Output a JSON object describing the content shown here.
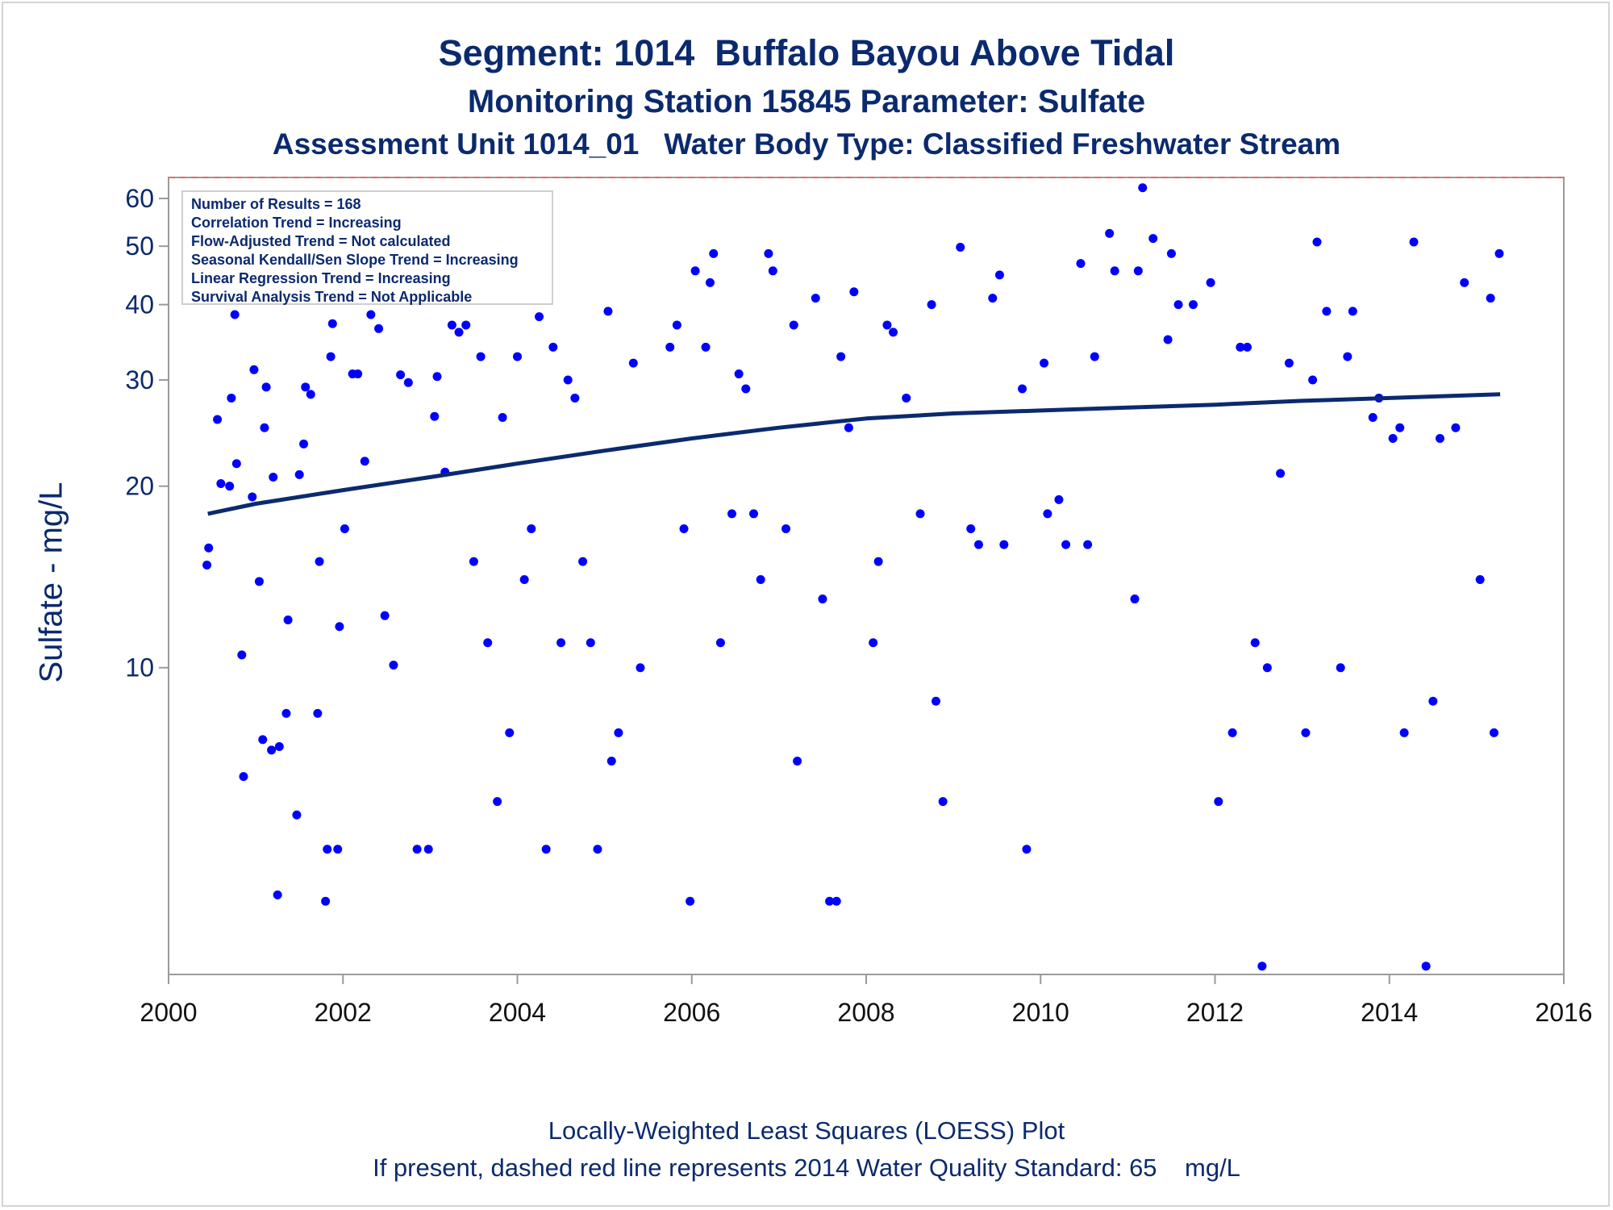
{
  "title": "Segment: 1014  Buffalo Bayou Above Tidal",
  "subtitle": "Monitoring Station 15845 Parameter: Sulfate",
  "subtitle2": "Assessment Unit 1014_01   Water Body Type: Classified Freshwater Stream",
  "footer1": "Locally-Weighted Least Squares (LOESS) Plot",
  "footer2": "If present, dashed red line represents 2014 Water Quality Standard: 65    mg/L",
  "stats": [
    "Number of Results = 168",
    "Correlation Trend = Increasing",
    "Flow-Adjusted Trend = Not calculated",
    "Seasonal Kendall/Sen Slope Trend = Increasing",
    "Linear Regression Trend = Increasing",
    "Survival Analysis Trend = Not Applicable"
  ],
  "colors": {
    "text": "#0b2a6e",
    "points": "#0000ff",
    "loess": "#0b2a6e",
    "standard": "#e06a6a",
    "axis": "#9a9a9a"
  },
  "chart_data": {
    "type": "scatter",
    "ylabel": "Sulfate - mg/L",
    "xlim": [
      2000,
      2016
    ],
    "ylim": [
      3.1,
      65
    ],
    "y_scale": "log",
    "x_ticks": [
      "2000",
      "2002",
      "2004",
      "2006",
      "2008",
      "2010",
      "2012",
      "2014",
      "2016"
    ],
    "y_ticks": [
      "10",
      "20",
      "30",
      "40",
      "50",
      "60"
    ],
    "standard": 65,
    "points": [
      [
        2000.44,
        14.8
      ],
      [
        2000.46,
        15.8
      ],
      [
        2000.56,
        25.8
      ],
      [
        2000.6,
        20.2
      ],
      [
        2000.7,
        20.0
      ],
      [
        2000.72,
        28.0
      ],
      [
        2000.76,
        38.5
      ],
      [
        2000.78,
        21.8
      ],
      [
        2000.84,
        10.5
      ],
      [
        2000.86,
        6.6
      ],
      [
        2000.96,
        19.2
      ],
      [
        2000.98,
        31.2
      ],
      [
        2001.04,
        13.9
      ],
      [
        2001.08,
        7.6
      ],
      [
        2001.1,
        25.0
      ],
      [
        2001.12,
        29.2
      ],
      [
        2001.18,
        7.3
      ],
      [
        2001.2,
        20.7
      ],
      [
        2001.25,
        4.2
      ],
      [
        2001.27,
        7.4
      ],
      [
        2001.35,
        8.4
      ],
      [
        2001.37,
        12.0
      ],
      [
        2001.47,
        5.7
      ],
      [
        2001.5,
        20.9
      ],
      [
        2001.55,
        23.5
      ],
      [
        2001.57,
        29.2
      ],
      [
        2001.63,
        28.4
      ],
      [
        2001.71,
        8.4
      ],
      [
        2001.73,
        15.0
      ],
      [
        2001.8,
        4.1
      ],
      [
        2001.82,
        5.0
      ],
      [
        2001.86,
        32.8
      ],
      [
        2001.88,
        37.2
      ],
      [
        2001.94,
        5.0
      ],
      [
        2001.96,
        11.7
      ],
      [
        2002.02,
        17.0
      ],
      [
        2002.11,
        30.7
      ],
      [
        2002.17,
        30.7
      ],
      [
        2002.25,
        22.0
      ],
      [
        2002.32,
        38.5
      ],
      [
        2002.41,
        36.5
      ],
      [
        2002.48,
        12.2
      ],
      [
        2002.58,
        10.1
      ],
      [
        2002.66,
        30.6
      ],
      [
        2002.75,
        29.7
      ],
      [
        2002.85,
        5.0
      ],
      [
        2002.98,
        5.0
      ],
      [
        2003.05,
        26.1
      ],
      [
        2003.08,
        30.4
      ],
      [
        2003.17,
        21.1
      ],
      [
        2003.25,
        37.0
      ],
      [
        2003.33,
        36.0
      ],
      [
        2003.41,
        37.0
      ],
      [
        2003.5,
        15.0
      ],
      [
        2003.58,
        32.8
      ],
      [
        2003.66,
        11.0
      ],
      [
        2003.77,
        6.0
      ],
      [
        2003.83,
        26.0
      ],
      [
        2003.91,
        7.8
      ],
      [
        2004.0,
        32.8
      ],
      [
        2004.08,
        14.0
      ],
      [
        2004.16,
        17.0
      ],
      [
        2004.25,
        38.2
      ],
      [
        2004.33,
        5.0
      ],
      [
        2004.41,
        34.0
      ],
      [
        2004.5,
        11.0
      ],
      [
        2004.58,
        30.0
      ],
      [
        2004.66,
        28.0
      ],
      [
        2004.75,
        15.0
      ],
      [
        2004.84,
        11.0
      ],
      [
        2004.92,
        5.0
      ],
      [
        2005.04,
        39.0
      ],
      [
        2005.08,
        7.0
      ],
      [
        2005.16,
        7.8
      ],
      [
        2005.33,
        32.0
      ],
      [
        2005.41,
        10.0
      ],
      [
        2005.75,
        34.0
      ],
      [
        2005.83,
        37.0
      ],
      [
        2005.91,
        17.0
      ],
      [
        2005.98,
        4.1
      ],
      [
        2006.04,
        45.5
      ],
      [
        2006.16,
        34.0
      ],
      [
        2006.21,
        43.5
      ],
      [
        2006.25,
        48.6
      ],
      [
        2006.33,
        11.0
      ],
      [
        2006.46,
        18.0
      ],
      [
        2006.54,
        30.7
      ],
      [
        2006.62,
        29.0
      ],
      [
        2006.71,
        18.0
      ],
      [
        2006.79,
        14.0
      ],
      [
        2006.88,
        48.6
      ],
      [
        2006.93,
        45.5
      ],
      [
        2007.08,
        17.0
      ],
      [
        2007.17,
        37.0
      ],
      [
        2007.21,
        7.0
      ],
      [
        2007.42,
        41.0
      ],
      [
        2007.5,
        13.0
      ],
      [
        2007.58,
        4.1
      ],
      [
        2007.66,
        4.1
      ],
      [
        2007.71,
        32.8
      ],
      [
        2007.8,
        25.0
      ],
      [
        2007.86,
        42.0
      ],
      [
        2008.08,
        11.0
      ],
      [
        2008.14,
        15.0
      ],
      [
        2008.24,
        37.0
      ],
      [
        2008.31,
        36.0
      ],
      [
        2008.46,
        28.0
      ],
      [
        2008.62,
        18.0
      ],
      [
        2008.75,
        40.0
      ],
      [
        2008.8,
        8.8
      ],
      [
        2008.88,
        6.0
      ],
      [
        2009.08,
        49.8
      ],
      [
        2009.2,
        17.0
      ],
      [
        2009.29,
        16.0
      ],
      [
        2009.45,
        41.0
      ],
      [
        2009.53,
        44.8
      ],
      [
        2009.58,
        16.0
      ],
      [
        2009.79,
        29.0
      ],
      [
        2009.84,
        5.0
      ],
      [
        2010.04,
        32.0
      ],
      [
        2010.08,
        18.0
      ],
      [
        2010.21,
        19.0
      ],
      [
        2010.29,
        16.0
      ],
      [
        2010.46,
        46.8
      ],
      [
        2010.54,
        16.0
      ],
      [
        2010.62,
        32.8
      ],
      [
        2010.79,
        52.5
      ],
      [
        2010.85,
        45.5
      ],
      [
        2011.08,
        13.0
      ],
      [
        2011.12,
        45.5
      ],
      [
        2011.17,
        62.5
      ],
      [
        2011.29,
        51.5
      ],
      [
        2011.46,
        35.0
      ],
      [
        2011.5,
        48.6
      ],
      [
        2011.58,
        40.0
      ],
      [
        2011.75,
        40.0
      ],
      [
        2011.95,
        43.5
      ],
      [
        2012.04,
        6.0
      ],
      [
        2012.2,
        7.8
      ],
      [
        2012.29,
        34.0
      ],
      [
        2012.37,
        34.0
      ],
      [
        2012.46,
        11.0
      ],
      [
        2012.54,
        3.2
      ],
      [
        2012.6,
        10.0
      ],
      [
        2012.75,
        21.0
      ],
      [
        2012.85,
        32.0
      ],
      [
        2013.04,
        7.8
      ],
      [
        2013.12,
        30.0
      ],
      [
        2013.17,
        50.8
      ],
      [
        2013.28,
        39.0
      ],
      [
        2013.44,
        10.0
      ],
      [
        2013.52,
        32.8
      ],
      [
        2013.58,
        39.0
      ],
      [
        2013.81,
        26.0
      ],
      [
        2013.88,
        28.0
      ],
      [
        2014.04,
        24.0
      ],
      [
        2014.12,
        25.0
      ],
      [
        2014.17,
        7.8
      ],
      [
        2014.28,
        50.8
      ],
      [
        2014.42,
        3.2
      ],
      [
        2014.5,
        8.8
      ],
      [
        2014.58,
        24.0
      ],
      [
        2014.76,
        25.0
      ],
      [
        2014.86,
        43.5
      ],
      [
        2015.04,
        14.0
      ],
      [
        2015.16,
        41.0
      ],
      [
        2015.2,
        7.8
      ],
      [
        2015.26,
        48.6
      ]
    ],
    "loess": [
      [
        2000.45,
        18.0
      ],
      [
        2001.0,
        18.7
      ],
      [
        2002.0,
        19.7
      ],
      [
        2003.0,
        20.7
      ],
      [
        2004.0,
        21.8
      ],
      [
        2005.0,
        22.9
      ],
      [
        2006.0,
        24.0
      ],
      [
        2007.0,
        25.0
      ],
      [
        2008.0,
        25.9
      ],
      [
        2009.0,
        26.4
      ],
      [
        2010.0,
        26.7
      ],
      [
        2011.0,
        27.0
      ],
      [
        2012.0,
        27.3
      ],
      [
        2013.0,
        27.7
      ],
      [
        2014.0,
        28.0
      ],
      [
        2015.27,
        28.4
      ]
    ]
  }
}
